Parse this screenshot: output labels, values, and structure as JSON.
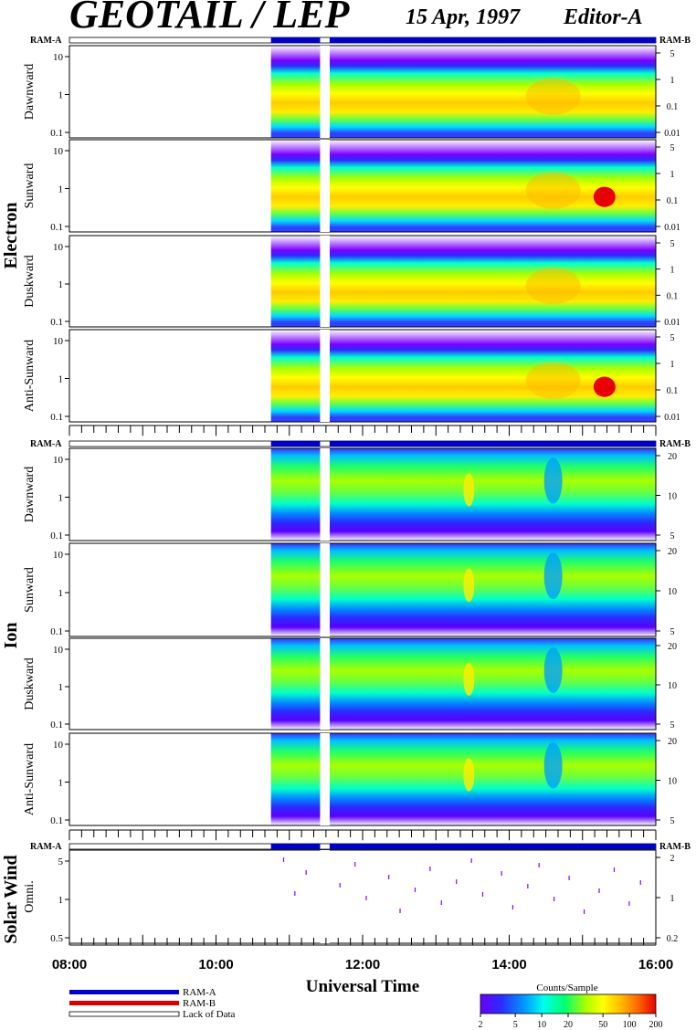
{
  "header": {
    "instrument": "GEOTAIL / LEP",
    "date": "15 Apr, 1997",
    "editor": "Editor-A"
  },
  "ram_labels": {
    "left": "RAM-A",
    "right": "RAM-B"
  },
  "group_labels": {
    "electron": "Electron",
    "ion": "Ion",
    "solar_wind": "Solar Wind"
  },
  "x_axis": {
    "title": "Universal Time",
    "ticks": [
      "08:00",
      "10:00",
      "12:00",
      "14:00",
      "16:00"
    ]
  },
  "legend": {
    "ram_a": "RAM-A",
    "ram_b": "RAM-B",
    "lack": "Lack of Data",
    "colorbar_title": "Counts/Sample",
    "colorbar_ticks": [
      "2",
      "5",
      "10",
      "20",
      "50",
      "100",
      "200"
    ]
  },
  "colors": {
    "ram_a": "#0000cc",
    "ram_b": "#dd0000",
    "colormap": [
      "#6a00ff",
      "#2a2cff",
      "#00a0ff",
      "#00ffee",
      "#00ff70",
      "#aaff00",
      "#ffff00",
      "#ffbb00",
      "#ff6600",
      "#e80000"
    ]
  },
  "chart_data": {
    "type": "heatmap",
    "x_range_hours": [
      8,
      16
    ],
    "data_start_hour": 10.75,
    "data_gap_hours": [
      11.42,
      11.55
    ],
    "panels": [
      {
        "group": "electron",
        "label": "Dawnward",
        "left_ticks": [
          "10",
          "1",
          "0.1"
        ],
        "right_ticks": [
          "5",
          "1",
          "0.1",
          "0.01"
        ]
      },
      {
        "group": "electron",
        "label": "Sunward",
        "left_ticks": [
          "10",
          "1",
          "0.1"
        ],
        "right_ticks": [
          "5",
          "1",
          "0.1",
          "0.01"
        ]
      },
      {
        "group": "electron",
        "label": "Duskward",
        "left_ticks": [
          "10",
          "1",
          "0.1"
        ],
        "right_ticks": [
          "5",
          "1",
          "0.1",
          "0.01"
        ]
      },
      {
        "group": "electron",
        "label": "Anti-Sunward",
        "left_ticks": [
          "10",
          "1",
          "0.1"
        ],
        "right_ticks": [
          "5",
          "1",
          "0.1",
          "0.01"
        ]
      },
      {
        "group": "ion",
        "label": "Dawnward",
        "left_ticks": [
          "10",
          "1",
          "0.1"
        ],
        "right_ticks": [
          "20",
          "10",
          "5"
        ]
      },
      {
        "group": "ion",
        "label": "Sunward",
        "left_ticks": [
          "10",
          "1",
          "0.1"
        ],
        "right_ticks": [
          "20",
          "10",
          "5"
        ]
      },
      {
        "group": "ion",
        "label": "Duskward",
        "left_ticks": [
          "10",
          "1",
          "0.1"
        ],
        "right_ticks": [
          "20",
          "10",
          "5"
        ]
      },
      {
        "group": "ion",
        "label": "Anti-Sunward",
        "left_ticks": [
          "10",
          "1",
          "0.1"
        ],
        "right_ticks": [
          "20",
          "10",
          "5"
        ]
      },
      {
        "group": "solar_wind",
        "label": "Omni.",
        "left_ticks": [
          "5",
          "1",
          "0.5"
        ],
        "right_ticks": [
          "2",
          "1",
          "0.2"
        ]
      }
    ]
  }
}
